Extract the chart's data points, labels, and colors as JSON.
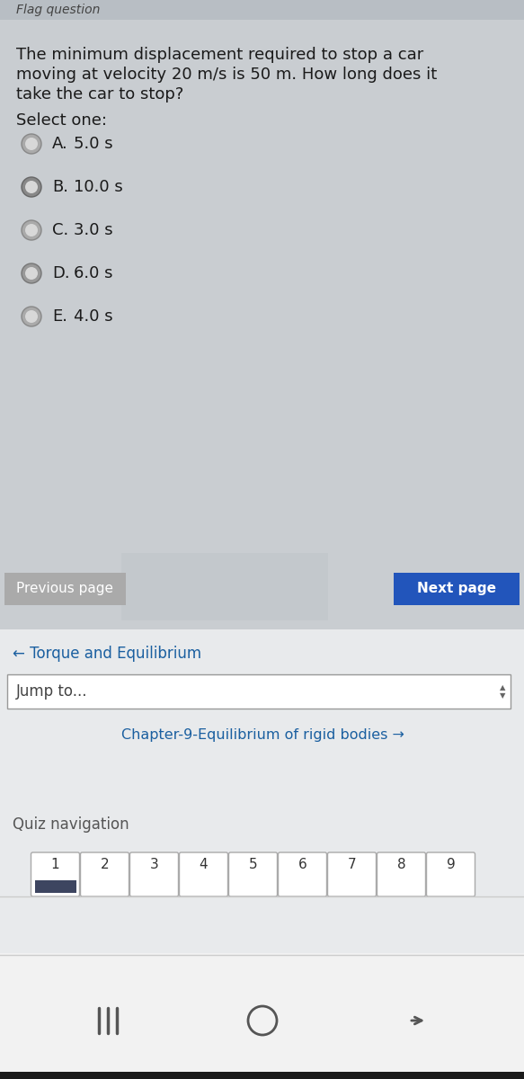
{
  "bg_main": "#c9cdd1",
  "bg_light": "#e8eaec",
  "bg_white": "#f4f4f4",
  "header_text": "Flag question",
  "question_text_line1": "The minimum displacement required to stop a car",
  "question_text_line2": "moving at velocity 20 m/s is 50 m. How long does it",
  "question_text_line3": "take the car to stop?",
  "select_one": "Select one:",
  "options": [
    {
      "label": "A.",
      "text": "5.0 s"
    },
    {
      "label": "B.",
      "text": "10.0 s"
    },
    {
      "label": "C.",
      "text": "3.0 s"
    },
    {
      "label": "D.",
      "text": "6.0 s"
    },
    {
      "label": "E.",
      "text": "4.0 s"
    }
  ],
  "prev_page": "Previous page",
  "next_page": "Next page",
  "next_page_bg": "#2255bb",
  "prev_page_bg": "#aaaaaa",
  "link_text": "← Torque and Equilibrium",
  "jump_text": "Jump to...",
  "chapter_text": "Chapter-9-Equilibrium of rigid bodies →",
  "quiz_nav_text": "Quiz navigation",
  "quiz_numbers": [
    "1",
    "2",
    "3",
    "4",
    "5",
    "6",
    "7",
    "8",
    "9"
  ],
  "link_color": "#1a5fa0",
  "text_color": "#1a1a1a",
  "gray_text": "#555555",
  "question_font_size": 13,
  "option_font_size": 13,
  "radio_colors": [
    "#aaaaaa",
    "#888888",
    "#aaaaaa",
    "#999999",
    "#aaaaaa"
  ],
  "radio_border": [
    "#888888",
    "#666666",
    "#888888",
    "#777777",
    "#888888"
  ]
}
